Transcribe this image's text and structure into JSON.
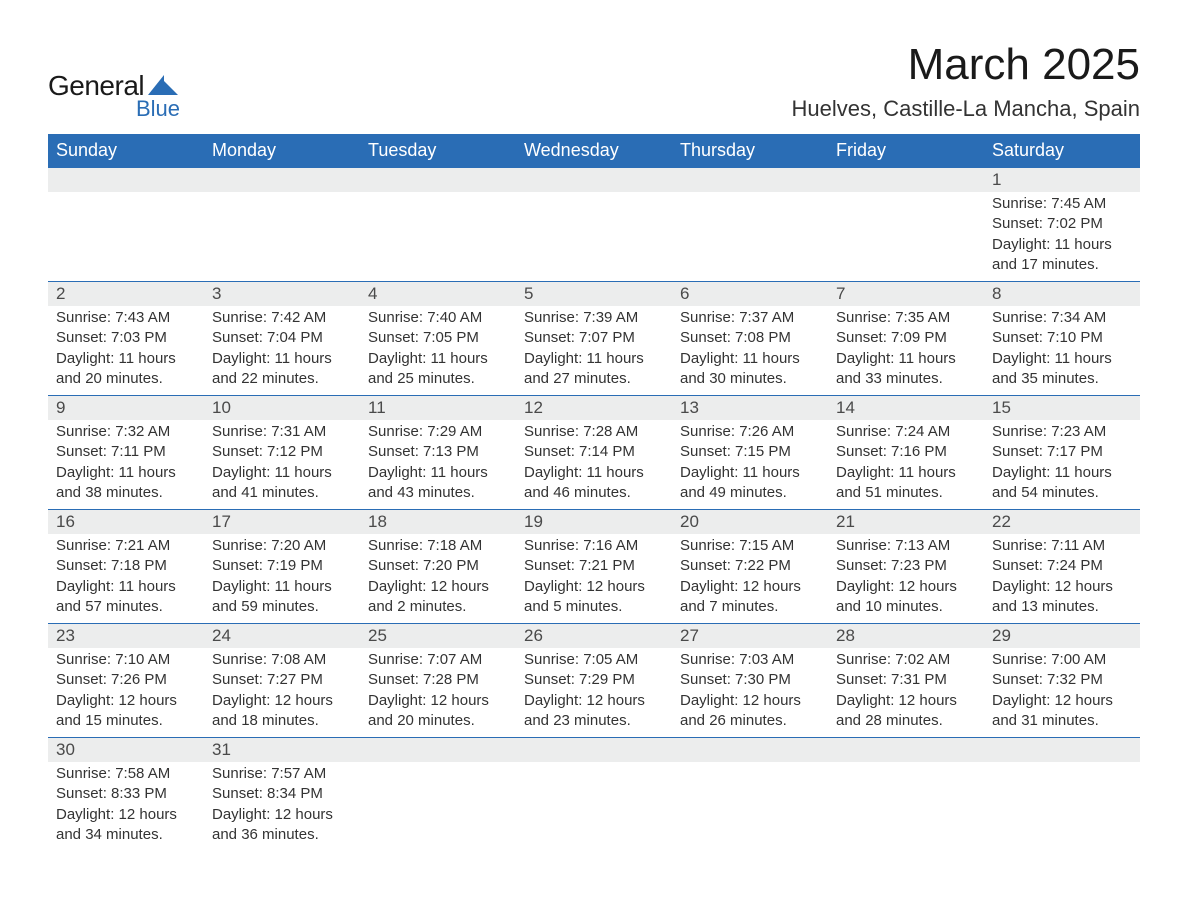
{
  "logo": {
    "text1": "General",
    "text2": "Blue",
    "shape_color": "#2a6db5"
  },
  "title": "March 2025",
  "location": "Huelves, Castille-La Mancha, Spain",
  "colors": {
    "header_bg": "#2a6db5",
    "header_fg": "#ffffff",
    "daynum_bg": "#eceded",
    "row_border": "#2a6db5",
    "body_fg": "#333333",
    "page_bg": "#ffffff"
  },
  "typography": {
    "title_fontsize": 44,
    "location_fontsize": 22,
    "header_fontsize": 18,
    "daynum_fontsize": 17,
    "body_fontsize": 15
  },
  "columns": [
    "Sunday",
    "Monday",
    "Tuesday",
    "Wednesday",
    "Thursday",
    "Friday",
    "Saturday"
  ],
  "weeks": [
    [
      null,
      null,
      null,
      null,
      null,
      null,
      {
        "n": "1",
        "sunrise": "Sunrise: 7:45 AM",
        "sunset": "Sunset: 7:02 PM",
        "daylight": "Daylight: 11 hours and 17 minutes."
      }
    ],
    [
      {
        "n": "2",
        "sunrise": "Sunrise: 7:43 AM",
        "sunset": "Sunset: 7:03 PM",
        "daylight": "Daylight: 11 hours and 20 minutes."
      },
      {
        "n": "3",
        "sunrise": "Sunrise: 7:42 AM",
        "sunset": "Sunset: 7:04 PM",
        "daylight": "Daylight: 11 hours and 22 minutes."
      },
      {
        "n": "4",
        "sunrise": "Sunrise: 7:40 AM",
        "sunset": "Sunset: 7:05 PM",
        "daylight": "Daylight: 11 hours and 25 minutes."
      },
      {
        "n": "5",
        "sunrise": "Sunrise: 7:39 AM",
        "sunset": "Sunset: 7:07 PM",
        "daylight": "Daylight: 11 hours and 27 minutes."
      },
      {
        "n": "6",
        "sunrise": "Sunrise: 7:37 AM",
        "sunset": "Sunset: 7:08 PM",
        "daylight": "Daylight: 11 hours and 30 minutes."
      },
      {
        "n": "7",
        "sunrise": "Sunrise: 7:35 AM",
        "sunset": "Sunset: 7:09 PM",
        "daylight": "Daylight: 11 hours and 33 minutes."
      },
      {
        "n": "8",
        "sunrise": "Sunrise: 7:34 AM",
        "sunset": "Sunset: 7:10 PM",
        "daylight": "Daylight: 11 hours and 35 minutes."
      }
    ],
    [
      {
        "n": "9",
        "sunrise": "Sunrise: 7:32 AM",
        "sunset": "Sunset: 7:11 PM",
        "daylight": "Daylight: 11 hours and 38 minutes."
      },
      {
        "n": "10",
        "sunrise": "Sunrise: 7:31 AM",
        "sunset": "Sunset: 7:12 PM",
        "daylight": "Daylight: 11 hours and 41 minutes."
      },
      {
        "n": "11",
        "sunrise": "Sunrise: 7:29 AM",
        "sunset": "Sunset: 7:13 PM",
        "daylight": "Daylight: 11 hours and 43 minutes."
      },
      {
        "n": "12",
        "sunrise": "Sunrise: 7:28 AM",
        "sunset": "Sunset: 7:14 PM",
        "daylight": "Daylight: 11 hours and 46 minutes."
      },
      {
        "n": "13",
        "sunrise": "Sunrise: 7:26 AM",
        "sunset": "Sunset: 7:15 PM",
        "daylight": "Daylight: 11 hours and 49 minutes."
      },
      {
        "n": "14",
        "sunrise": "Sunrise: 7:24 AM",
        "sunset": "Sunset: 7:16 PM",
        "daylight": "Daylight: 11 hours and 51 minutes."
      },
      {
        "n": "15",
        "sunrise": "Sunrise: 7:23 AM",
        "sunset": "Sunset: 7:17 PM",
        "daylight": "Daylight: 11 hours and 54 minutes."
      }
    ],
    [
      {
        "n": "16",
        "sunrise": "Sunrise: 7:21 AM",
        "sunset": "Sunset: 7:18 PM",
        "daylight": "Daylight: 11 hours and 57 minutes."
      },
      {
        "n": "17",
        "sunrise": "Sunrise: 7:20 AM",
        "sunset": "Sunset: 7:19 PM",
        "daylight": "Daylight: 11 hours and 59 minutes."
      },
      {
        "n": "18",
        "sunrise": "Sunrise: 7:18 AM",
        "sunset": "Sunset: 7:20 PM",
        "daylight": "Daylight: 12 hours and 2 minutes."
      },
      {
        "n": "19",
        "sunrise": "Sunrise: 7:16 AM",
        "sunset": "Sunset: 7:21 PM",
        "daylight": "Daylight: 12 hours and 5 minutes."
      },
      {
        "n": "20",
        "sunrise": "Sunrise: 7:15 AM",
        "sunset": "Sunset: 7:22 PM",
        "daylight": "Daylight: 12 hours and 7 minutes."
      },
      {
        "n": "21",
        "sunrise": "Sunrise: 7:13 AM",
        "sunset": "Sunset: 7:23 PM",
        "daylight": "Daylight: 12 hours and 10 minutes."
      },
      {
        "n": "22",
        "sunrise": "Sunrise: 7:11 AM",
        "sunset": "Sunset: 7:24 PM",
        "daylight": "Daylight: 12 hours and 13 minutes."
      }
    ],
    [
      {
        "n": "23",
        "sunrise": "Sunrise: 7:10 AM",
        "sunset": "Sunset: 7:26 PM",
        "daylight": "Daylight: 12 hours and 15 minutes."
      },
      {
        "n": "24",
        "sunrise": "Sunrise: 7:08 AM",
        "sunset": "Sunset: 7:27 PM",
        "daylight": "Daylight: 12 hours and 18 minutes."
      },
      {
        "n": "25",
        "sunrise": "Sunrise: 7:07 AM",
        "sunset": "Sunset: 7:28 PM",
        "daylight": "Daylight: 12 hours and 20 minutes."
      },
      {
        "n": "26",
        "sunrise": "Sunrise: 7:05 AM",
        "sunset": "Sunset: 7:29 PM",
        "daylight": "Daylight: 12 hours and 23 minutes."
      },
      {
        "n": "27",
        "sunrise": "Sunrise: 7:03 AM",
        "sunset": "Sunset: 7:30 PM",
        "daylight": "Daylight: 12 hours and 26 minutes."
      },
      {
        "n": "28",
        "sunrise": "Sunrise: 7:02 AM",
        "sunset": "Sunset: 7:31 PM",
        "daylight": "Daylight: 12 hours and 28 minutes."
      },
      {
        "n": "29",
        "sunrise": "Sunrise: 7:00 AM",
        "sunset": "Sunset: 7:32 PM",
        "daylight": "Daylight: 12 hours and 31 minutes."
      }
    ],
    [
      {
        "n": "30",
        "sunrise": "Sunrise: 7:58 AM",
        "sunset": "Sunset: 8:33 PM",
        "daylight": "Daylight: 12 hours and 34 minutes."
      },
      {
        "n": "31",
        "sunrise": "Sunrise: 7:57 AM",
        "sunset": "Sunset: 8:34 PM",
        "daylight": "Daylight: 12 hours and 36 minutes."
      },
      null,
      null,
      null,
      null,
      null
    ]
  ]
}
